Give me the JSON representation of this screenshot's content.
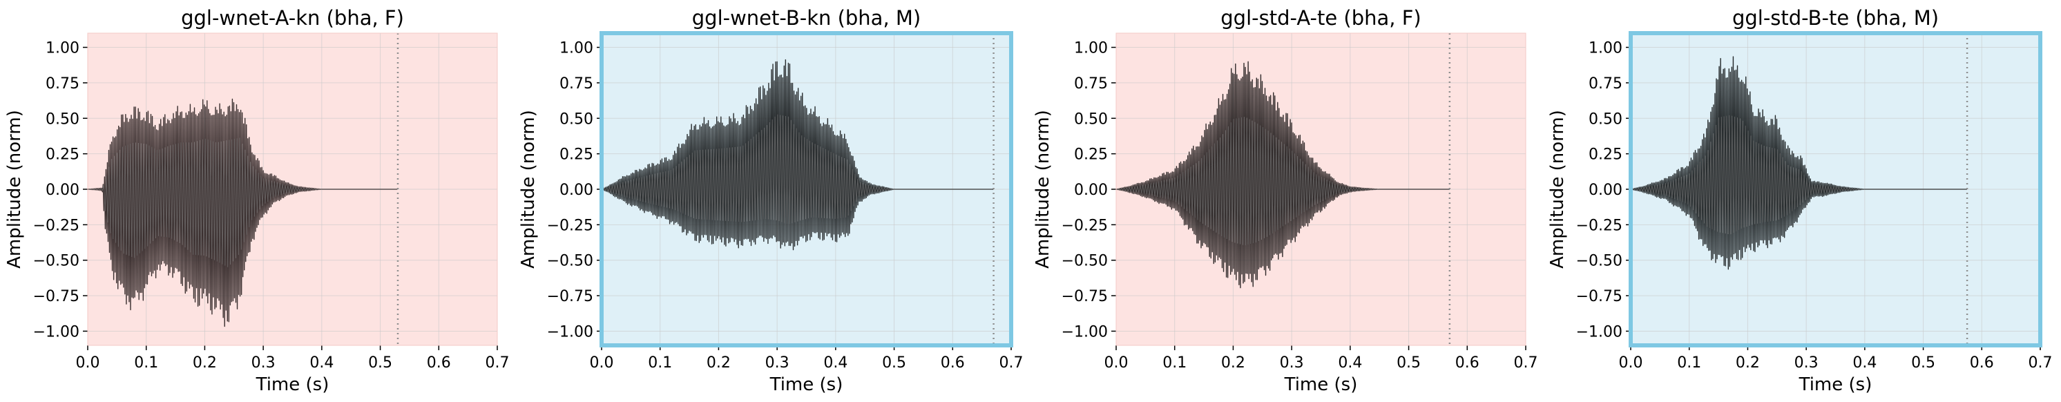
{
  "chart_data": [
    {
      "type": "line",
      "title": "ggl-wnet-A-kn (bha, F)",
      "xlabel": "Time (s)",
      "ylabel": "Amplitude (norm)",
      "xlim": [
        0.0,
        0.7
      ],
      "ylim": [
        -1.1,
        1.1
      ],
      "xticks": [
        "0.0",
        "0.1",
        "0.2",
        "0.3",
        "0.4",
        "0.5",
        "0.6",
        "0.7"
      ],
      "yticks": [
        "−1.00",
        "−0.75",
        "−0.50",
        "−0.25",
        "0.00",
        "0.25",
        "0.50",
        "0.75",
        "1.00"
      ],
      "grid": true,
      "background": "#fde3e1",
      "highlight_border": false,
      "end_marker_x": 0.53,
      "waveform_color": "#3a2f2f",
      "signal_end_x": 0.53,
      "envelope": {
        "t": [
          0.0,
          0.025,
          0.03,
          0.04,
          0.06,
          0.08,
          0.1,
          0.12,
          0.14,
          0.16,
          0.18,
          0.2,
          0.22,
          0.24,
          0.26,
          0.28,
          0.3,
          0.32,
          0.34,
          0.36,
          0.38,
          0.4,
          0.45
        ],
        "max": [
          0.0,
          0.01,
          0.12,
          0.38,
          0.55,
          0.6,
          0.58,
          0.5,
          0.56,
          0.6,
          0.6,
          0.65,
          0.6,
          0.63,
          0.66,
          0.32,
          0.14,
          0.1,
          0.05,
          0.02,
          0.01,
          0.0,
          0.0
        ],
        "min": [
          0.0,
          -0.01,
          -0.3,
          -0.6,
          -0.82,
          -0.88,
          -0.75,
          -0.6,
          -0.62,
          -0.7,
          -0.84,
          -0.85,
          -0.92,
          -1.0,
          -0.82,
          -0.4,
          -0.2,
          -0.1,
          -0.05,
          -0.02,
          -0.01,
          0.0,
          0.0
        ]
      }
    },
    {
      "type": "line",
      "title": "ggl-wnet-B-kn (bha, M)",
      "xlabel": "Time (s)",
      "ylabel": "Amplitude (norm)",
      "xlim": [
        0.0,
        0.7
      ],
      "ylim": [
        -1.1,
        1.1
      ],
      "xticks": [
        "0.0",
        "0.1",
        "0.2",
        "0.3",
        "0.4",
        "0.5",
        "0.6",
        "0.7"
      ],
      "yticks": [
        "−1.00",
        "−0.75",
        "−0.50",
        "−0.25",
        "0.00",
        "0.25",
        "0.50",
        "0.75",
        "1.00"
      ],
      "grid": true,
      "background": "#dff0f7",
      "highlight_border": true,
      "border_color": "#7ec8e3",
      "end_marker_x": 0.67,
      "waveform_color": "#2a2e30",
      "signal_end_x": 0.67,
      "envelope": {
        "t": [
          0.0,
          0.01,
          0.04,
          0.08,
          0.12,
          0.16,
          0.2,
          0.24,
          0.28,
          0.3,
          0.32,
          0.34,
          0.36,
          0.4,
          0.42,
          0.44,
          0.46,
          0.48,
          0.5
        ],
        "max": [
          0.0,
          0.02,
          0.1,
          0.18,
          0.25,
          0.5,
          0.52,
          0.55,
          0.8,
          0.96,
          0.93,
          0.7,
          0.6,
          0.45,
          0.38,
          0.1,
          0.04,
          0.02,
          0.0
        ],
        "min": [
          0.0,
          -0.02,
          -0.1,
          -0.18,
          -0.25,
          -0.38,
          -0.4,
          -0.42,
          -0.38,
          -0.4,
          -0.45,
          -0.4,
          -0.36,
          -0.38,
          -0.36,
          -0.1,
          -0.04,
          -0.02,
          0.0
        ]
      }
    },
    {
      "type": "line",
      "title": "ggl-std-A-te (bha, F)",
      "xlabel": "Time (s)",
      "ylabel": "Amplitude (norm)",
      "xlim": [
        0.0,
        0.7
      ],
      "ylim": [
        -1.1,
        1.1
      ],
      "xticks": [
        "0.0",
        "0.1",
        "0.2",
        "0.3",
        "0.4",
        "0.5",
        "0.6",
        "0.7"
      ],
      "yticks": [
        "−1.00",
        "−0.75",
        "−0.50",
        "−0.25",
        "0.00",
        "0.25",
        "0.50",
        "0.75",
        "1.00"
      ],
      "grid": true,
      "background": "#fde3e1",
      "highlight_border": false,
      "end_marker_x": 0.57,
      "waveform_color": "#302a2a",
      "signal_end_x": 0.57,
      "envelope": {
        "t": [
          0.0,
          0.02,
          0.05,
          0.1,
          0.14,
          0.18,
          0.2,
          0.22,
          0.24,
          0.26,
          0.3,
          0.34,
          0.38,
          0.4,
          0.42,
          0.45
        ],
        "max": [
          0.0,
          0.02,
          0.06,
          0.15,
          0.35,
          0.68,
          0.9,
          0.93,
          0.85,
          0.75,
          0.5,
          0.2,
          0.05,
          0.02,
          0.01,
          0.0
        ],
        "min": [
          0.0,
          -0.02,
          -0.06,
          -0.15,
          -0.4,
          -0.6,
          -0.68,
          -0.72,
          -0.68,
          -0.6,
          -0.4,
          -0.2,
          -0.05,
          -0.02,
          -0.01,
          0.0
        ]
      }
    },
    {
      "type": "line",
      "title": "ggl-std-B-te (bha, M)",
      "xlabel": "Time (s)",
      "ylabel": "Amplitude (norm)",
      "xlim": [
        0.0,
        0.7
      ],
      "ylim": [
        -1.1,
        1.1
      ],
      "xticks": [
        "0.0",
        "0.1",
        "0.2",
        "0.3",
        "0.4",
        "0.5",
        "0.6",
        "0.7"
      ],
      "yticks": [
        "−1.00",
        "−0.75",
        "−0.50",
        "−0.25",
        "0.00",
        "0.25",
        "0.50",
        "0.75",
        "1.00"
      ],
      "grid": true,
      "background": "#dff0f7",
      "highlight_border": true,
      "border_color": "#7ec8e3",
      "end_marker_x": 0.575,
      "waveform_color": "#262b2d",
      "signal_end_x": 0.575,
      "envelope": {
        "t": [
          0.0,
          0.02,
          0.06,
          0.1,
          0.13,
          0.15,
          0.17,
          0.19,
          0.21,
          0.23,
          0.25,
          0.27,
          0.29,
          0.31,
          0.33,
          0.36,
          0.38,
          0.4
        ],
        "max": [
          0.0,
          0.02,
          0.08,
          0.2,
          0.45,
          0.92,
          0.95,
          0.9,
          0.62,
          0.55,
          0.52,
          0.3,
          0.25,
          0.06,
          0.05,
          0.02,
          0.01,
          0.0
        ],
        "min": [
          0.0,
          -0.02,
          -0.08,
          -0.2,
          -0.48,
          -0.55,
          -0.58,
          -0.5,
          -0.45,
          -0.42,
          -0.4,
          -0.32,
          -0.2,
          -0.06,
          -0.05,
          -0.02,
          -0.01,
          0.0
        ]
      }
    }
  ]
}
